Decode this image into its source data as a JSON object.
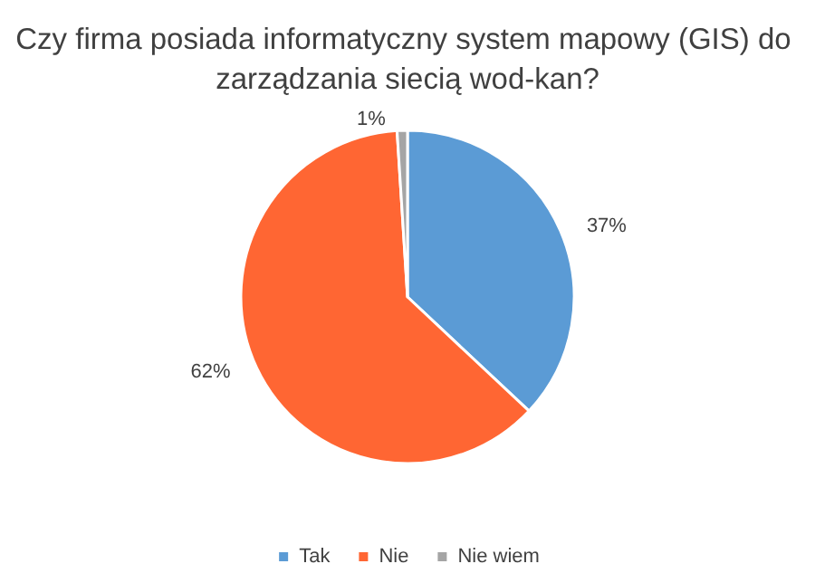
{
  "chart_data": {
    "type": "pie",
    "title": "Czy firma posiada informatyczny system mapowy (GIS) do zarządzania siecią wod-kan?",
    "categories": [
      "Tak",
      "Nie",
      "Nie wiem"
    ],
    "values": [
      37,
      62,
      1
    ],
    "colors": [
      "#5b9bd5",
      "#ff6633",
      "#a5a5a5"
    ],
    "value_labels": [
      "37%",
      "62%",
      "1%"
    ],
    "legend": "bottom"
  }
}
